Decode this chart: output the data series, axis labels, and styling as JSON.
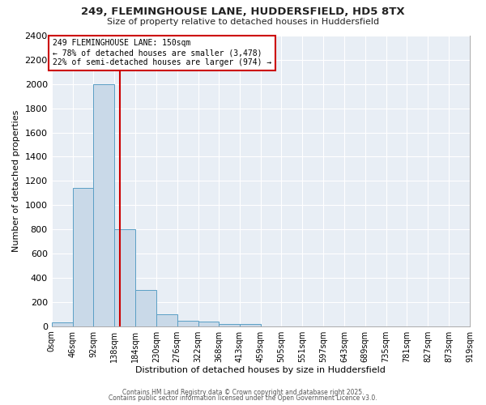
{
  "title1": "249, FLEMINGHOUSE LANE, HUDDERSFIELD, HD5 8TX",
  "title2": "Size of property relative to detached houses in Huddersfield",
  "xlabel": "Distribution of detached houses by size in Huddersfield",
  "ylabel": "Number of detached properties",
  "bin_edges": [
    0,
    46,
    92,
    138,
    184,
    230,
    276,
    322,
    368,
    413,
    459,
    505,
    551,
    597,
    643,
    689,
    735,
    781,
    827,
    873,
    919
  ],
  "bar_heights": [
    30,
    1140,
    2000,
    800,
    300,
    100,
    45,
    35,
    20,
    20,
    0,
    0,
    0,
    0,
    0,
    0,
    0,
    0,
    0,
    0
  ],
  "bar_color": "#c9d9e8",
  "bar_edge_color": "#5a9fc5",
  "property_line_x": 150,
  "property_line_color": "#cc0000",
  "annotation_title": "249 FLEMINGHOUSE LANE: 150sqm",
  "annotation_line1": "← 78% of detached houses are smaller (3,478)",
  "annotation_line2": "22% of semi-detached houses are larger (974) →",
  "annotation_box_color": "#cc0000",
  "ylim": [
    0,
    2400
  ],
  "yticks": [
    0,
    200,
    400,
    600,
    800,
    1000,
    1200,
    1400,
    1600,
    1800,
    2000,
    2200,
    2400
  ],
  "background_color": "#e8eef5",
  "plot_bg_color": "#e8eef5",
  "grid_color": "#ffffff",
  "fig_bg_color": "#ffffff",
  "footer1": "Contains HM Land Registry data © Crown copyright and database right 2025.",
  "footer2": "Contains public sector information licensed under the Open Government Licence v3.0."
}
